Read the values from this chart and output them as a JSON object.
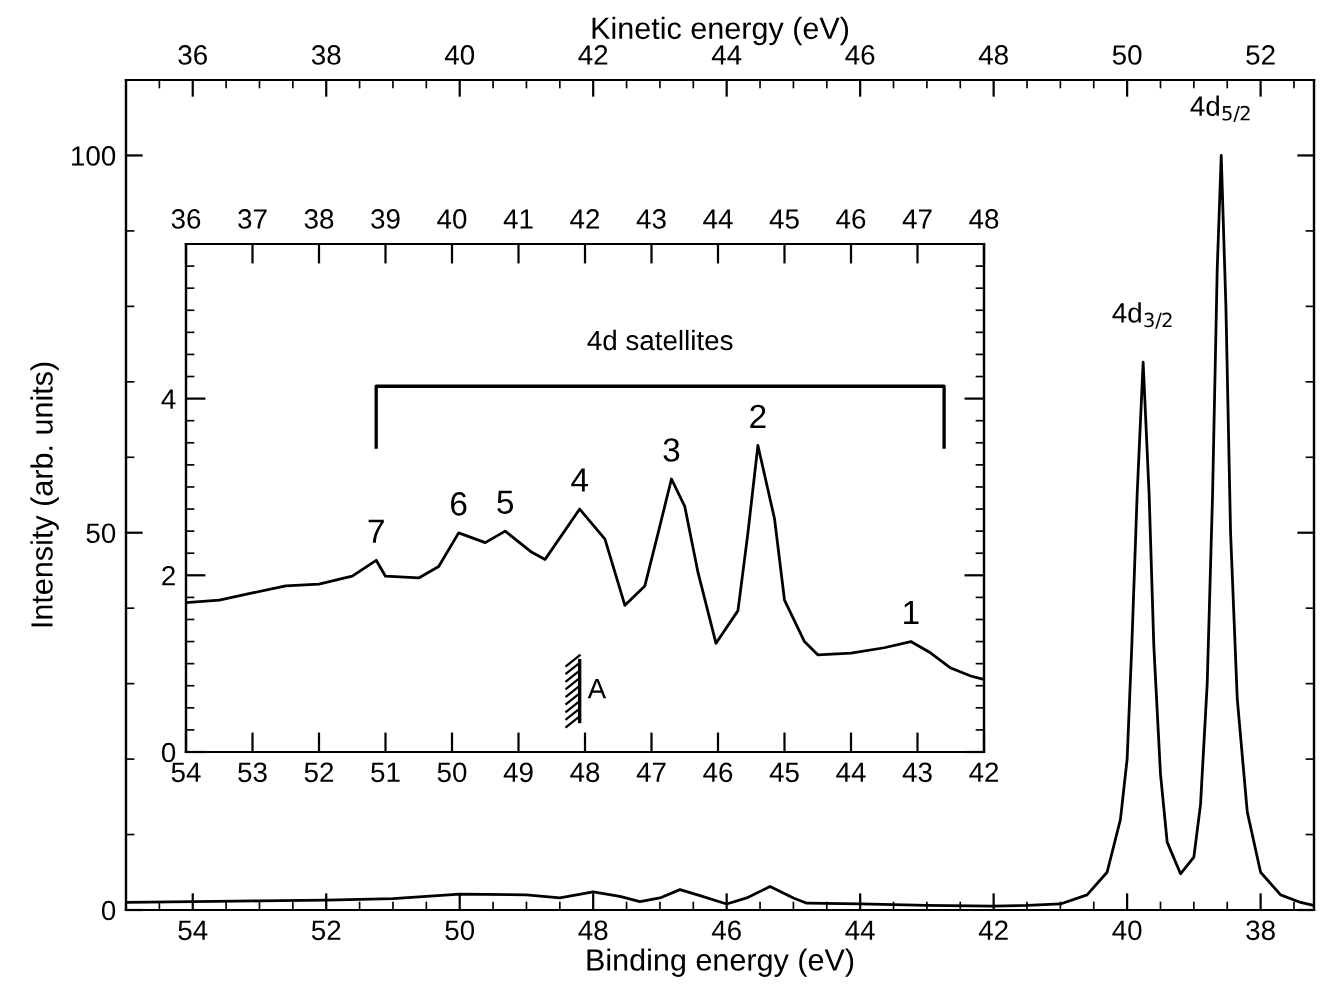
{
  "chart_data": [
    {
      "type": "line",
      "xlabel": "Binding energy (eV)",
      "ylabel": "Intensity (arb. units)",
      "x2label": "Kinetic energy (eV)",
      "xlim": [
        55,
        37.2
      ],
      "xticks": [
        54,
        52,
        50,
        48,
        46,
        44,
        42,
        40,
        38
      ],
      "ylim": [
        0,
        110
      ],
      "yticks": [
        0,
        50,
        100
      ],
      "x2lim": [
        35,
        52.8
      ],
      "x2ticks": [
        36,
        38,
        40,
        42,
        44,
        46,
        48,
        50,
        52
      ],
      "grid": false,
      "marker": "none",
      "line_style": "solid",
      "series": [
        {
          "color": "#000000",
          "x": [
            55,
            54,
            53,
            52,
            51,
            50,
            49,
            48.5,
            48,
            47.6,
            47.3,
            47.0,
            46.7,
            46.4,
            46.0,
            45.7,
            45.35,
            45.0,
            44.8,
            44,
            43,
            42,
            41.5,
            41.0,
            40.6,
            40.3,
            40.1,
            40.0,
            39.93,
            39.85,
            39.76,
            39.67,
            39.6,
            39.5,
            39.4,
            39.2,
            39.0,
            38.9,
            38.8,
            38.72,
            38.65,
            38.59,
            38.52,
            38.45,
            38.35,
            38.2,
            38.0,
            37.7,
            37.4,
            37.2
          ],
          "values": [
            1.0,
            1.1,
            1.2,
            1.3,
            1.5,
            2.1,
            2.0,
            1.6,
            2.4,
            1.8,
            1.1,
            1.6,
            2.7,
            1.9,
            0.8,
            1.6,
            3.1,
            1.6,
            0.9,
            0.8,
            0.6,
            0.5,
            0.6,
            0.8,
            2,
            5,
            12,
            20,
            35,
            55,
            72.6,
            55,
            35,
            18,
            9,
            4.8,
            7,
            14,
            30,
            55,
            85,
            100,
            80,
            50,
            28,
            13,
            5,
            2,
            1,
            0.6
          ]
        }
      ],
      "annotations": [
        {
          "text": "4d$_{3/2}$",
          "x": 39.76,
          "y": 72.6
        },
        {
          "text": "4d$_{5/2}$",
          "x": 38.59,
          "y": 100
        }
      ]
    },
    {
      "type": "line",
      "x2label": null,
      "xlim": [
        54,
        42
      ],
      "xticks": [
        54,
        53,
        52,
        51,
        50,
        49,
        48,
        47,
        46,
        45,
        44,
        43,
        42
      ],
      "ylim": [
        0,
        5.75
      ],
      "yticks": [
        0,
        2,
        4
      ],
      "x2lim": [
        36,
        48
      ],
      "x2ticks": [
        36,
        37,
        38,
        39,
        40,
        41,
        42,
        43,
        44,
        45,
        46,
        47,
        48
      ],
      "grid": false,
      "marker": "none",
      "line_style": "solid",
      "series": [
        {
          "color": "#000000",
          "x": [
            54,
            53.5,
            53,
            52.5,
            52,
            51.5,
            51.14,
            51.0,
            50.5,
            50.2,
            49.9,
            49.5,
            49.2,
            48.8,
            48.6,
            48.08,
            47.7,
            47.4,
            47.1,
            46.9,
            46.7,
            46.5,
            46.3,
            46.03,
            45.7,
            45.55,
            45.4,
            45.15,
            45.0,
            44.7,
            44.5,
            44.0,
            43.5,
            43.1,
            42.8,
            42.5,
            42.2,
            42.0
          ],
          "values": [
            1.69,
            1.72,
            1.8,
            1.88,
            1.9,
            1.99,
            2.17,
            1.99,
            1.97,
            2.1,
            2.48,
            2.37,
            2.5,
            2.26,
            2.18,
            2.75,
            2.41,
            1.66,
            1.88,
            2.48,
            3.09,
            2.78,
            2.03,
            1.23,
            1.6,
            2.48,
            3.47,
            2.64,
            1.72,
            1.25,
            1.1,
            1.12,
            1.18,
            1.25,
            1.12,
            0.95,
            0.86,
            0.82
          ]
        }
      ],
      "annotations": [
        {
          "text": "7",
          "x": 51.14,
          "y": 2.17
        },
        {
          "text": "6",
          "x": 49.9,
          "y": 2.48
        },
        {
          "text": "5",
          "x": 49.2,
          "y": 2.5
        },
        {
          "text": "4",
          "x": 48.08,
          "y": 2.75
        },
        {
          "text": "3",
          "x": 46.7,
          "y": 3.09
        },
        {
          "text": "2",
          "x": 45.4,
          "y": 3.47
        },
        {
          "text": "1",
          "x": 43.1,
          "y": 1.25
        },
        "4d satellites",
        "A"
      ]
    }
  ]
}
